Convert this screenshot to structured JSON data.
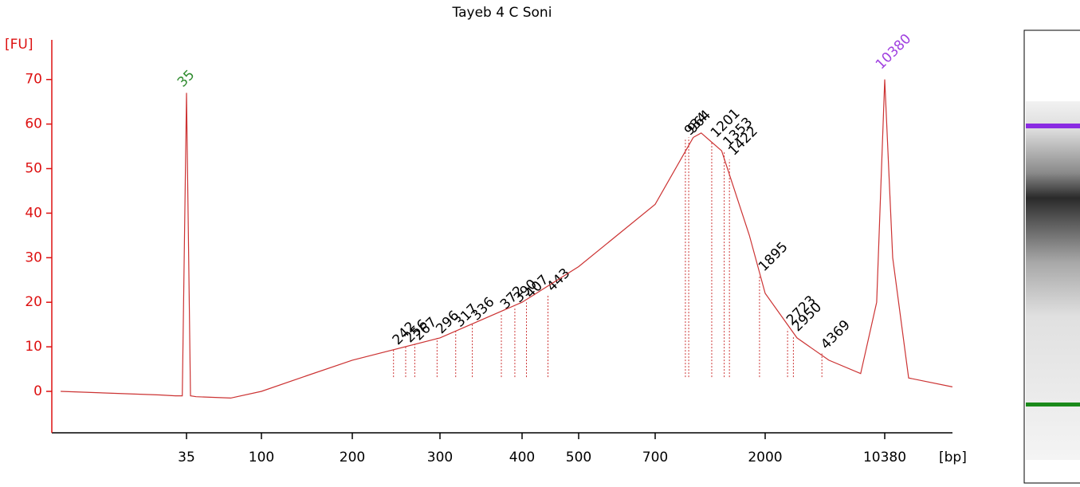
{
  "chart_data": {
    "type": "line",
    "title": "Tayeb 4 C Soni",
    "y_label": "[FU]",
    "x_label": "[bp]",
    "series": [
      {
        "name": "Tayeb 4 C Soni",
        "color": "#cc3333",
        "x": [
          6,
          24,
          30,
          33,
          35,
          37,
          40,
          65,
          100,
          141,
          200,
          300,
          400,
          500,
          700,
          1007,
          1086,
          1320,
          1720,
          2000,
          3100,
          4810,
          7450,
          9290,
          10380,
          11580,
          14430,
          26360
        ],
        "values": [
          0,
          -0.8,
          -1,
          -1,
          67,
          -1,
          -1.2,
          -1.5,
          0,
          3.5,
          7,
          12,
          20,
          28,
          42,
          57,
          58,
          54,
          35,
          22,
          12,
          7,
          4,
          20,
          70,
          30,
          3,
          1
        ]
      }
    ],
    "markers": [
      {
        "x": 35,
        "y": 67,
        "color": "#2e8b2e"
      },
      {
        "x": 10380,
        "y": 71,
        "color": "#a040e0"
      }
    ],
    "peaks": [
      {
        "x": 242,
        "y": 9.5
      },
      {
        "x": 256,
        "y": 10
      },
      {
        "x": 267,
        "y": 10.5
      },
      {
        "x": 296,
        "y": 12
      },
      {
        "x": 317,
        "y": 13.5
      },
      {
        "x": 336,
        "y": 15
      },
      {
        "x": 372,
        "y": 17.5
      },
      {
        "x": 390,
        "y": 19
      },
      {
        "x": 407,
        "y": 20
      },
      {
        "x": 443,
        "y": 21.5
      },
      {
        "x": 934,
        "y": 56.5
      },
      {
        "x": 964,
        "y": 57
      },
      {
        "x": 1201,
        "y": 56
      },
      {
        "x": 1353,
        "y": 54
      },
      {
        "x": 1422,
        "y": 52
      },
      {
        "x": 1895,
        "y": 26
      },
      {
        "x": 2723,
        "y": 14
      },
      {
        "x": 2950,
        "y": 12.5
      },
      {
        "x": 4369,
        "y": 8.5
      }
    ],
    "ylim": [
      -9.3,
      78.9
    ],
    "yticks": [
      0,
      10,
      20,
      30,
      40,
      50,
      60,
      70
    ],
    "xticks": [
      35,
      100,
      200,
      300,
      400,
      500,
      700,
      2000,
      10380
    ],
    "axis_color": "#dd1111"
  }
}
